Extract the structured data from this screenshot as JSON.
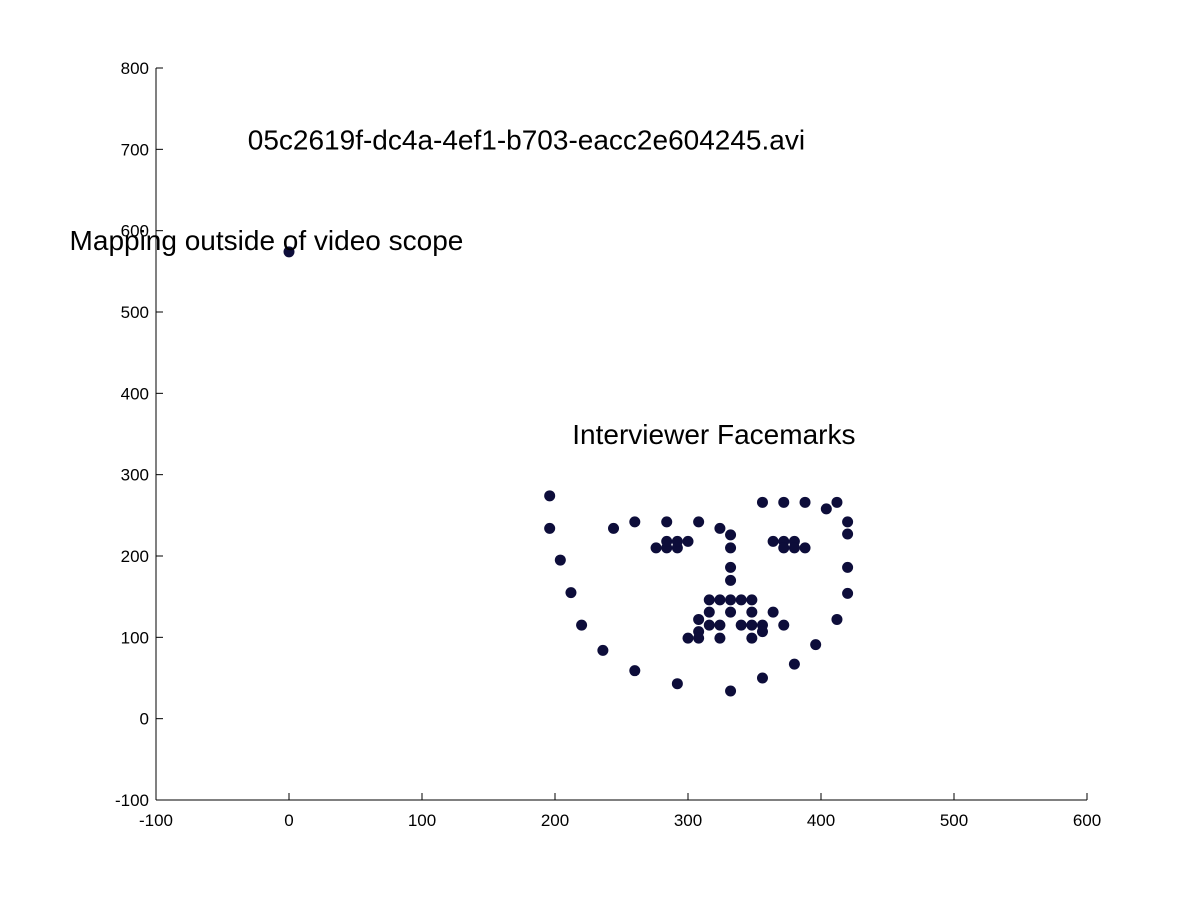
{
  "chart_data": {
    "type": "scatter",
    "title": "",
    "xlabel": "",
    "ylabel": "",
    "xlim": [
      -100,
      600
    ],
    "ylim": [
      -100,
      800
    ],
    "x_ticks": [
      -100,
      0,
      100,
      200,
      300,
      400,
      500,
      600
    ],
    "y_ticks": [
      -100,
      0,
      100,
      200,
      300,
      400,
      500,
      600,
      700,
      800
    ],
    "grid": false,
    "marker_color": "#0d0d3a",
    "annotations": [
      {
        "id": "file",
        "text": "05c2619f-dc4a-4ef1-b703-eacc2e604245.avi",
        "x": -31,
        "y": 700
      },
      {
        "id": "scope",
        "text": "Mapping outside of video scope",
        "x": -165,
        "y": 576
      },
      {
        "id": "facemarks",
        "text": "Interviewer Facemarks",
        "x": 213,
        "y": 338
      }
    ],
    "outlier_point": {
      "x": 0,
      "y": 574
    },
    "series": [
      {
        "points": [
          [
            196,
            274
          ],
          [
            196,
            234
          ],
          [
            204,
            195
          ],
          [
            212,
            155
          ],
          [
            220,
            115
          ],
          [
            236,
            84
          ],
          [
            260,
            59
          ],
          [
            292,
            43
          ],
          [
            332,
            34
          ],
          [
            356,
            50
          ],
          [
            380,
            67
          ],
          [
            396,
            91
          ],
          [
            412,
            122
          ],
          [
            420,
            154
          ],
          [
            420,
            186
          ],
          [
            420,
            227
          ],
          [
            420,
            242
          ],
          [
            412,
            266
          ],
          [
            404,
            258
          ],
          [
            388,
            266
          ],
          [
            372,
            266
          ],
          [
            356,
            266
          ],
          [
            244,
            234
          ],
          [
            260,
            242
          ],
          [
            284,
            242
          ],
          [
            308,
            242
          ],
          [
            324,
            234
          ],
          [
            332,
            226
          ],
          [
            332,
            210
          ],
          [
            332,
            186
          ],
          [
            332,
            170
          ],
          [
            316,
            146
          ],
          [
            324,
            146
          ],
          [
            332,
            146
          ],
          [
            340,
            146
          ],
          [
            348,
            146
          ],
          [
            276,
            210
          ],
          [
            284,
            210
          ],
          [
            292,
            210
          ],
          [
            284,
            218
          ],
          [
            292,
            218
          ],
          [
            300,
            218
          ],
          [
            364,
            218
          ],
          [
            372,
            218
          ],
          [
            380,
            218
          ],
          [
            372,
            210
          ],
          [
            380,
            210
          ],
          [
            388,
            210
          ],
          [
            316,
            131
          ],
          [
            332,
            131
          ],
          [
            348,
            131
          ],
          [
            364,
            131
          ],
          [
            308,
            122
          ],
          [
            316,
            115
          ],
          [
            324,
            115
          ],
          [
            340,
            115
          ],
          [
            348,
            115
          ],
          [
            356,
            115
          ],
          [
            372,
            115
          ],
          [
            356,
            107
          ],
          [
            308,
            107
          ],
          [
            300,
            99
          ],
          [
            308,
            99
          ],
          [
            324,
            99
          ],
          [
            348,
            99
          ]
        ]
      }
    ]
  }
}
